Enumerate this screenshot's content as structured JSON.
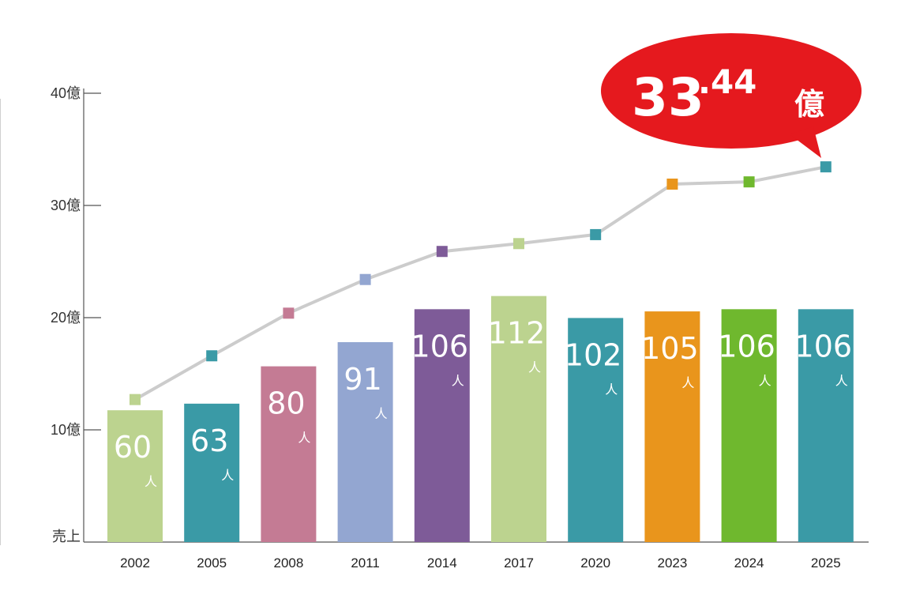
{
  "chart_data": {
    "type": "bar+line",
    "categories": [
      "2002",
      "2005",
      "2008",
      "2011",
      "2014",
      "2017",
      "2020",
      "2023",
      "2024",
      "2025"
    ],
    "y_axis": {
      "ticks": [
        {
          "value": 10,
          "label": "10億"
        },
        {
          "value": 20,
          "label": "20億"
        },
        {
          "value": 30,
          "label": "30億"
        },
        {
          "value": 40,
          "label": "40億"
        }
      ],
      "origin_label": "売上",
      "ylim": [
        0,
        40
      ]
    },
    "series": [
      {
        "type": "bar",
        "values": [
          60,
          63,
          80,
          91,
          106,
          112,
          102,
          105,
          106,
          106
        ],
        "unit": "人"
      },
      {
        "type": "line",
        "values": [
          12.7,
          16.6,
          20.4,
          23.4,
          25.9,
          26.6,
          27.4,
          31.9,
          32.1,
          33.44
        ]
      }
    ],
    "colors": [
      "#bcd38f",
      "#3a9aa6",
      "#c47b94",
      "#93a6d1",
      "#7e5b98",
      "#bcd38f",
      "#3a9aa6",
      "#e9951c",
      "#6fb82e",
      "#3a9aa6"
    ],
    "line_color": "#cccccc",
    "callout": {
      "integer": "33",
      "decimal": ".44",
      "unit": "億",
      "color": "#e5191e"
    }
  }
}
